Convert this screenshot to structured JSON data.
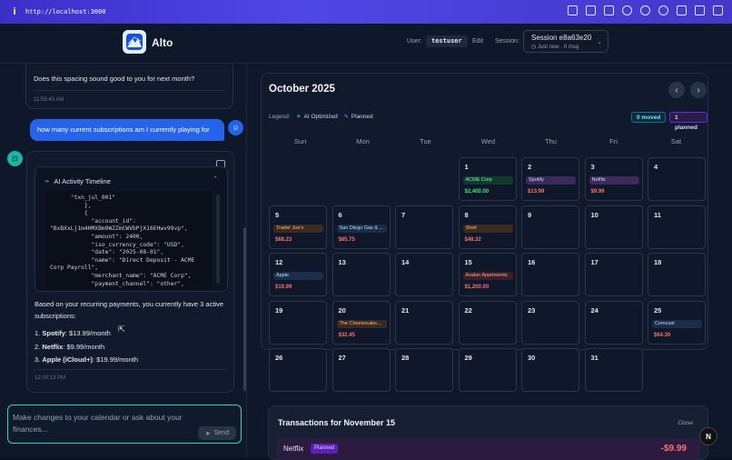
{
  "browser": {
    "url": "http://localhost:3000"
  },
  "header": {
    "app_name": "Alto",
    "user_label": "User:",
    "username": "testuser",
    "edit_label": "Edit",
    "session_label": "Session:",
    "session_title": "Session e8a63e20",
    "session_meta": "Just now  ·  0 msg"
  },
  "chat": {
    "prev_message": "Does this spacing sound good to you for next month?",
    "prev_time": "11:59:40 AM",
    "user_message": "how many current subscriptions am I currently playing for",
    "timeline_title": "AI Activity Timeline",
    "timeline_code": "      \"txn_jul_001\"\n          },\n          {\n            \"account_id\":\n\"BxBXxLj1m4HMXBm9WZZmCWVbPjX16EHwv99vp\",\n            \"amount\": 2400,\n            \"iso_currency_code\": \"USD\",\n            \"date\": \"2025-08-01\",\n            \"name\": \"Direct Deposit - ACME\nCorp Payroll\",\n            \"merchant_name\": \"ACME Corp\",\n            \"payment_channel\": \"other\",",
    "answer": "Based on your recurring payments, you currently have 3 active subscriptions:",
    "subscriptions": [
      {
        "name": "Spotify",
        "price": ": $13.99/month",
        "num": "1."
      },
      {
        "name": "Netflix",
        "price": ": $9.99/month",
        "num": "2."
      },
      {
        "name": "Apple (iCloud+)",
        "price": ": $19.99/month",
        "num": "3."
      }
    ],
    "answer_time": "12:00:13 PM",
    "input_placeholder": "Make changes to your calendar or ask about your finances...",
    "send_label": "Send"
  },
  "calendar": {
    "month": "October 2025",
    "legend_label": "Legend:",
    "legend_ai": "AI Optimized",
    "legend_planned": "Planned",
    "moved_badge": "0 moved",
    "planned_badge": "1 planned",
    "weekdays": [
      "Sun",
      "Mon",
      "Tue",
      "Wed",
      "Thu",
      "Fri",
      "Sat"
    ],
    "days": {
      "1": {
        "label": "ACME Corp",
        "amount": "$2,400.00"
      },
      "2": {
        "label": "Spotify",
        "amount": "$13.99"
      },
      "3": {
        "label": "Netflix",
        "amount": "$9.99"
      },
      "5": {
        "label": "Trader Joe's",
        "amount": "$68.23"
      },
      "6": {
        "label": "San Diego Gas & ...",
        "amount": "$85.75"
      },
      "8": {
        "label": "Shell",
        "amount": "$48.32"
      },
      "12": {
        "label": "Apple",
        "amount": "$19.99"
      },
      "15": {
        "label": "Avalon Apartments",
        "amount": "$1,200.00"
      },
      "20": {
        "label": "The Cheesecake...",
        "amount": "$32.45"
      },
      "25": {
        "label": "Comcast",
        "amount": "$64.30"
      }
    }
  },
  "transactions": {
    "title": "Transactions for November 15",
    "close_label": "Close",
    "item_merchant": "Netflix",
    "item_badge": "Planned",
    "item_amount": "-$9.99"
  },
  "fab_label": "N",
  "colors": {
    "accent": "#2563eb",
    "teal": "#2dd4bf",
    "planned": "#7c3aed",
    "negative": "#f87171",
    "positive": "#4ade80"
  }
}
